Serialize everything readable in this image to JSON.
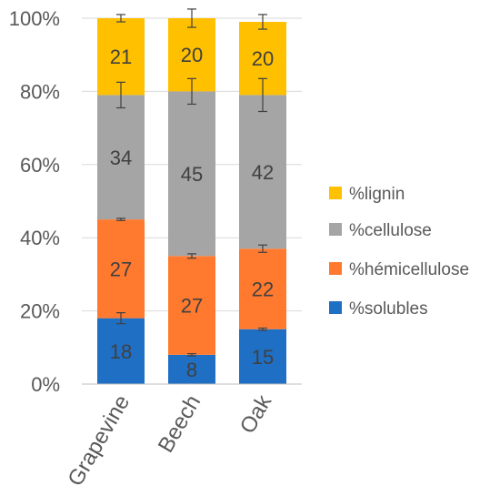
{
  "chart_data": {
    "type": "bar",
    "stacked": "percent",
    "categories": [
      "Grapevine",
      "Beech",
      "Oak"
    ],
    "ylim": [
      0,
      100
    ],
    "yticks": [
      "0%",
      "20%",
      "40%",
      "60%",
      "80%",
      "100%"
    ],
    "ytick_values": [
      0,
      20,
      40,
      60,
      80,
      100
    ],
    "grid": true,
    "legend_position": "right",
    "series": [
      {
        "name": "%solubles",
        "color": "#1F6FC5",
        "values": [
          18,
          8,
          15
        ],
        "labels": [
          "18",
          "8",
          "15"
        ],
        "errors": [
          1.5,
          0.3,
          0.3
        ]
      },
      {
        "name": "%hémicellulose",
        "color": "#FF7A2E",
        "values": [
          27,
          27,
          22
        ],
        "labels": [
          "27",
          "27",
          "22"
        ],
        "errors": [
          0.3,
          0.6,
          1.0
        ]
      },
      {
        "name": "%cellulose",
        "color": "#A5A5A5",
        "values": [
          34,
          45,
          42
        ],
        "labels": [
          "34",
          "45",
          "42"
        ],
        "errors": [
          3.5,
          3.5,
          4.5
        ]
      },
      {
        "name": "%lignin",
        "color": "#FFC000",
        "values": [
          21,
          20,
          20
        ],
        "labels": [
          "21",
          "20",
          "20"
        ],
        "errors": [
          1.0,
          2.5,
          2.0
        ]
      }
    ]
  }
}
